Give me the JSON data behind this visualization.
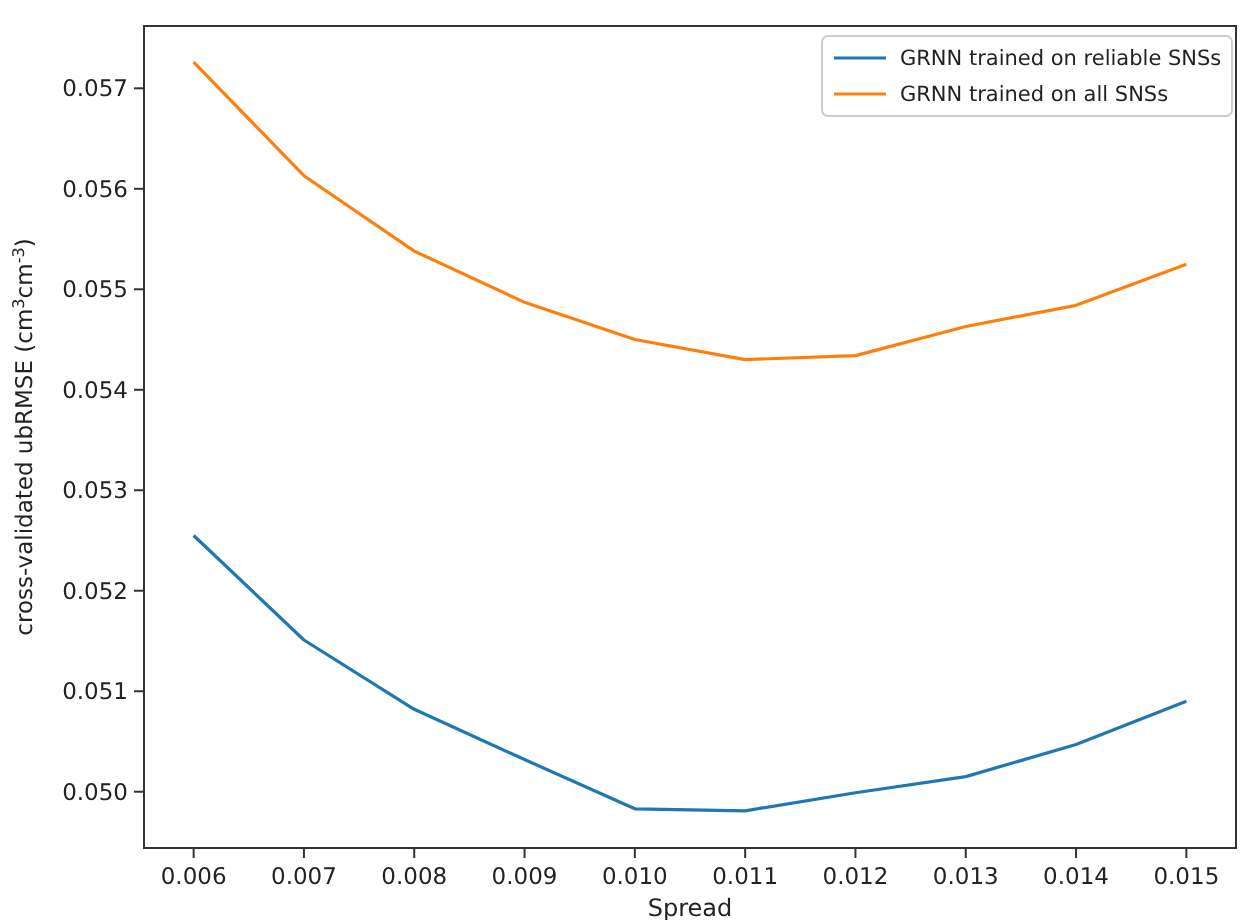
{
  "chart_data": {
    "type": "line",
    "xlabel": "Spread",
    "ylabel": "cross-validated ubRMSE (cm$^{3}$cm$^{-3}$)",
    "x": [
      0.006,
      0.007,
      0.008,
      0.009,
      0.01,
      0.011,
      0.012,
      0.013,
      0.014,
      0.015
    ],
    "series": [
      {
        "name": "GRNN trained on reliable SNSs",
        "color": "#1f77b4",
        "values": [
          0.05255,
          0.05151,
          0.05082,
          0.05032,
          0.04983,
          0.04981,
          0.04999,
          0.05015,
          0.05047,
          0.0509
        ]
      },
      {
        "name": "GRNN trained on all SNSs",
        "color": "#ff7f0e",
        "values": [
          0.05726,
          0.05613,
          0.05538,
          0.05487,
          0.0545,
          0.0543,
          0.05434,
          0.05463,
          0.05484,
          0.05525
        ]
      }
    ],
    "xlim": [
      0.00555,
      0.01545
    ],
    "ylim": [
      0.04944,
      0.05762
    ],
    "xticks": [
      0.006,
      0.007,
      0.008,
      0.009,
      {
        "value": 0.01,
        "label": "0.010"
      },
      0.011,
      0.012,
      0.013,
      0.014,
      0.015
    ],
    "yticks": [
      {
        "value": 0.05,
        "label": "0.050"
      },
      0.051,
      0.052,
      0.053,
      0.054,
      0.055,
      0.056,
      0.057
    ],
    "legend": "top right",
    "grid": false,
    "marker": "none",
    "line_style": "solid"
  }
}
